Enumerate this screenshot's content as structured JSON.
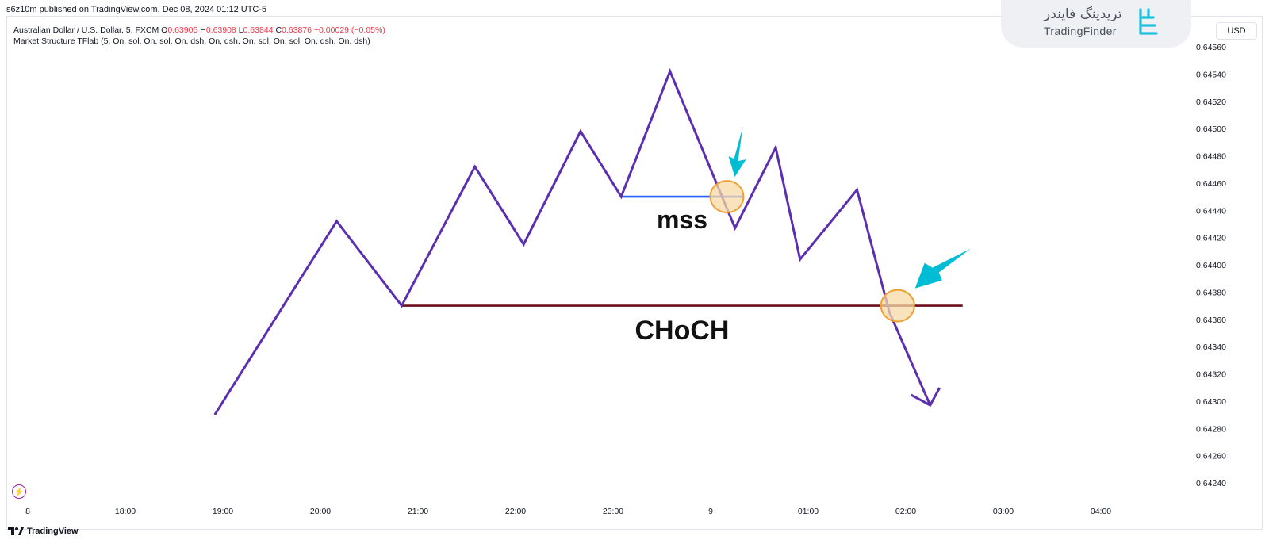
{
  "published_line": "s6z10m published on TradingView.com, Dec 08, 2024 01:12 UTC-5",
  "legend": {
    "symbol": "Australian Dollar / U.S. Dollar, 5, FXCM",
    "o_label": "O",
    "o_value": "0.63905",
    "h_label": "H",
    "h_value": "0.63908",
    "l_label": "L",
    "l_value": "0.63844",
    "c_label": "C",
    "c_value": "0.63876",
    "change": "−0.00029 (−0.05%)",
    "indicator": "Market Structure TFlab (5, On, sol, On, sol, On, dsh, On, dsh, On, sol, On, sol, On, dsh, On, dsh)"
  },
  "brand": {
    "persian_name": "تریدینگ فایندر",
    "latin_name": "TradingFinder"
  },
  "currency_button": "USD",
  "footer": {
    "logo_text": "TradingView"
  },
  "colors": {
    "price_line": "#5b2fb0",
    "mss_line": "#2962ff",
    "choch_line": "#6b0f1a",
    "arrow": "#00bcd4",
    "circle_stroke": "#f0a030",
    "circle_fill": "#f7d9a6",
    "legend_value": "#f23645"
  },
  "chart_data": {
    "type": "line",
    "y_unit": "USD",
    "y_ticks": [
      "0.64560",
      "0.64540",
      "0.64520",
      "0.64500",
      "0.64480",
      "0.64460",
      "0.64440",
      "0.64420",
      "0.64400",
      "0.64380",
      "0.64360",
      "0.64340",
      "0.64320",
      "0.64300",
      "0.64280",
      "0.64260",
      "0.64240"
    ],
    "x_ticks": [
      "8",
      "18:00",
      "19:00",
      "20:00",
      "21:00",
      "22:00",
      "23:00",
      "9",
      "01:00",
      "02:00",
      "03:00",
      "04:00"
    ],
    "series": [
      {
        "x": [
          "18:55",
          "20:10",
          "20:50",
          "21:35",
          "22:05",
          "22:40",
          "23:05",
          "23:35",
          "00:15",
          "00:40",
          "00:55",
          "01:30",
          "01:50",
          "02:15"
        ],
        "values": [
          0.6429,
          0.64432,
          0.6437,
          0.64472,
          0.64415,
          0.64498,
          0.6445,
          0.64542,
          0.64427,
          0.64486,
          0.64404,
          0.64455,
          0.64365,
          0.64297
        ]
      }
    ],
    "levels": [
      {
        "label": "mss",
        "value": 0.6445,
        "from": "23:05",
        "to": "00:20",
        "broken_at": "00:10"
      },
      {
        "label": "CHoCH",
        "value": 0.6437,
        "from": "20:50",
        "to": "02:35",
        "broken_at": "01:55"
      }
    ],
    "ylim": [
      0.6423,
      0.6457
    ],
    "xlim": [
      "17:00",
      "04:30"
    ]
  }
}
